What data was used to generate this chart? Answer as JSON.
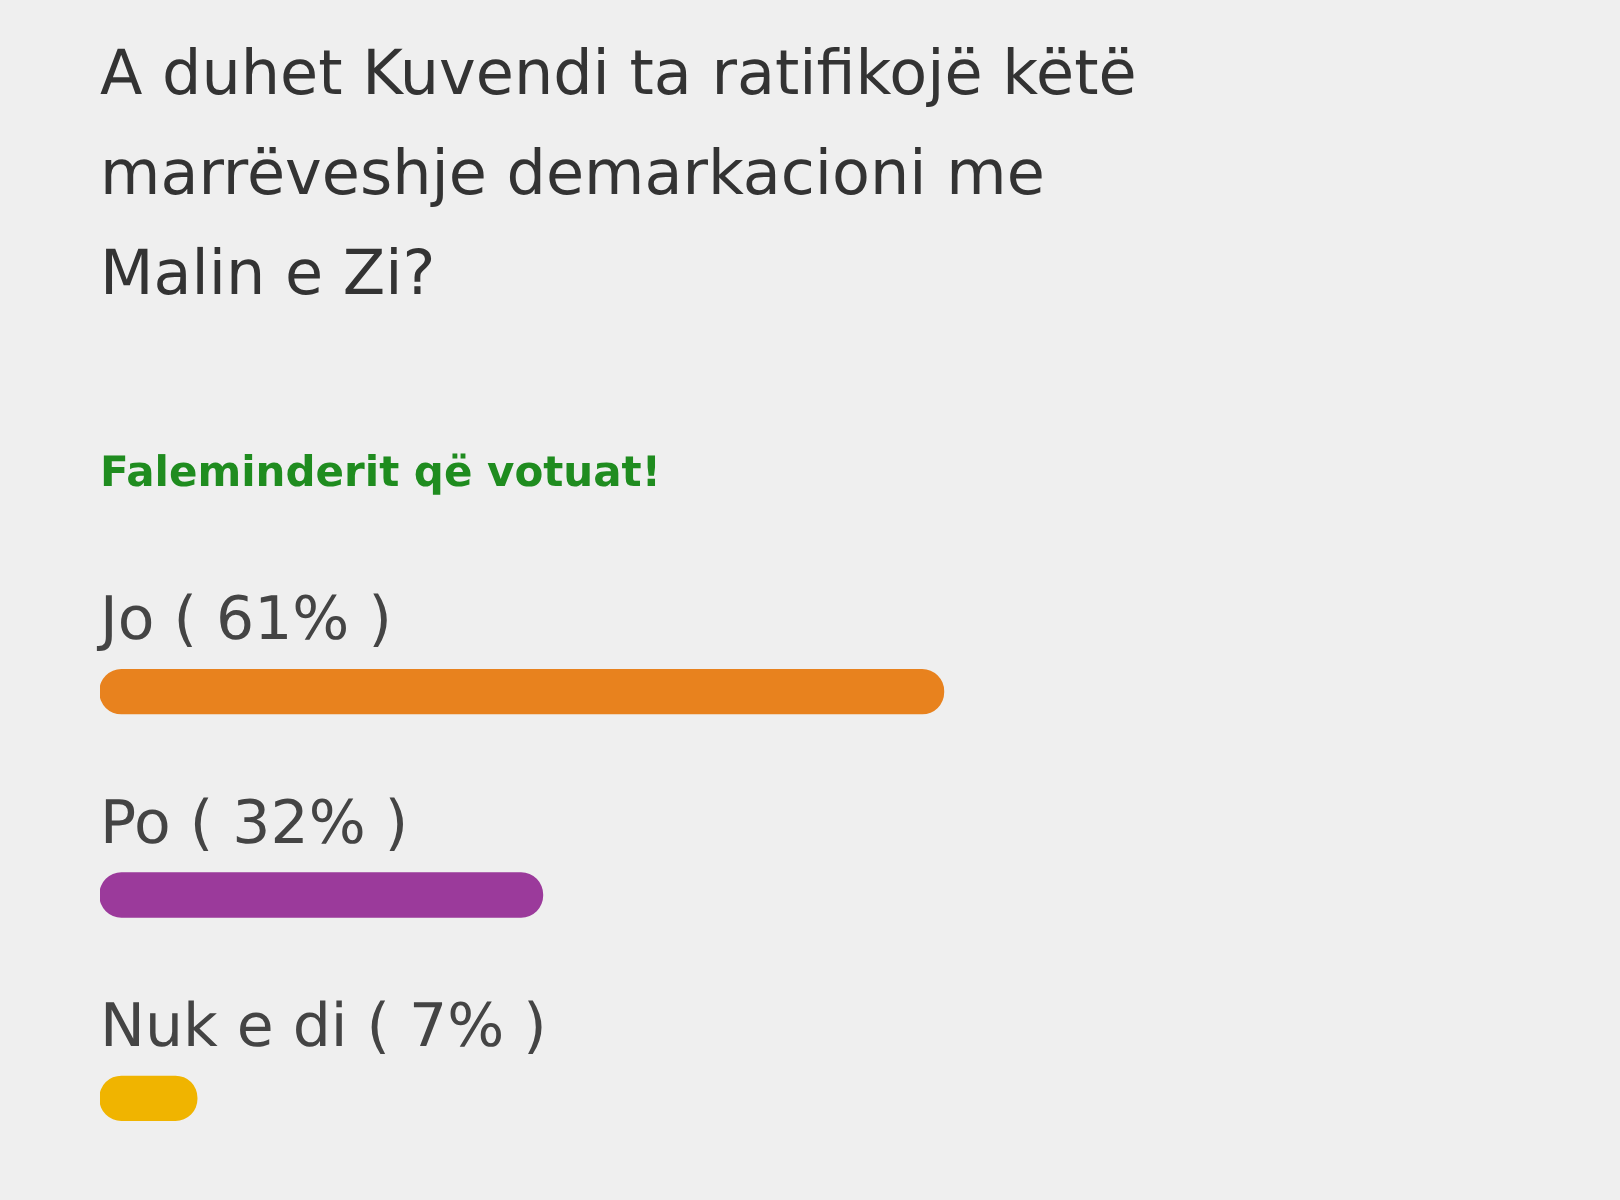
{
  "chart_data": {
    "type": "bar",
    "orientation": "horizontal",
    "title": "A duhet Kuvendi ta ratifikojë këtë marrëveshje demarkacioni me Malin e Zi?",
    "subtitle": "Faleminderit që votuat!",
    "categories": [
      "Jo",
      "Po",
      "Nuk e di"
    ],
    "values": [
      61,
      32,
      7
    ],
    "colors": [
      "#e8821e",
      "#9b3a9b",
      "#f0b400"
    ],
    "value_labels": [
      "( 61% )",
      "( 32% )",
      "( 7% )"
    ],
    "tick_labels": false,
    "legend": false
  }
}
